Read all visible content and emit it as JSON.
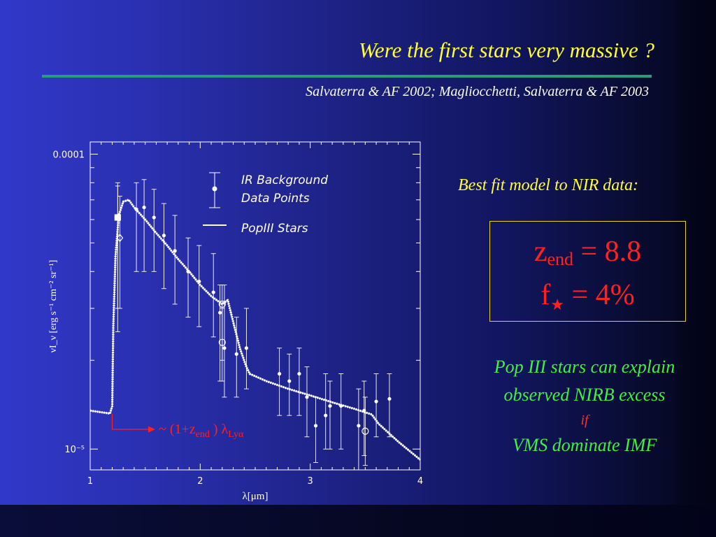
{
  "slide": {
    "title": "Were the first stars very massive ?",
    "references": "Salvaterra & AF 2002;  Magliocchetti, Salvaterra & AF 2003",
    "best_fit_label": "Best fit model to NIR data:",
    "fit": {
      "zend_symbol": "z",
      "zend_sub": "end",
      "zend_value": "= 8.8",
      "fstar_symbol": "f",
      "fstar_sub": "★",
      "fstar_value": "= 4%"
    },
    "notes": {
      "line1": "Pop III stars can explain",
      "line2": "observed NIRB excess",
      "line3": "if",
      "line4": "VMS dominate IMF"
    },
    "colors": {
      "title": "#ffff33",
      "rule": "#2d9a7c",
      "fit_text": "#ff2020",
      "fit_border": "#e8d020",
      "notes": "#44ee44",
      "if_text": "#ff3030",
      "plot_fg": "#ffffff"
    }
  },
  "chart_data": {
    "type": "scatter",
    "xlabel": "λ[μm]",
    "ylabel": "νI_ν  [erg s⁻¹ cm⁻² sr⁻¹]",
    "xlim": [
      1,
      4
    ],
    "ylog": true,
    "ylim": [
      8.5e-06,
      0.00011
    ],
    "x_ticks": [
      "1",
      "2",
      "3",
      "4"
    ],
    "y_ticks": [
      {
        "label": "0.0001",
        "value": 0.0001
      },
      {
        "label": "10⁻⁵",
        "value": 1e-05
      }
    ],
    "legend": [
      {
        "name": "IR Background Data Points",
        "marker": "point-errorbar"
      },
      {
        "name": "PopIII Stars",
        "marker": "line"
      }
    ],
    "annotation": {
      "text_prefix": "~ (1+z",
      "text_sub": "end",
      "text_mid": " ) λ",
      "text_sub2": "Lyα",
      "x_start": 1.2,
      "color": "#ff2020"
    },
    "series": [
      {
        "name": "IR Background Data Points",
        "points": [
          {
            "x": 1.25,
            "y": 6.1e-05,
            "lo": 3e-05,
            "hi": 8e-05,
            "marker": "filled-large"
          },
          {
            "x": 1.25,
            "y": 6.1e-05,
            "lo": 2.5e-05,
            "hi": 7.8e-05,
            "marker": "open-square"
          },
          {
            "x": 1.27,
            "y": 5.2e-05,
            "lo": 3e-05,
            "hi": 7.2e-05,
            "marker": "open-diamond"
          },
          {
            "x": 1.42,
            "y": 6.5e-05,
            "lo": 4e-05,
            "hi": 8e-05,
            "marker": "filled"
          },
          {
            "x": 1.49,
            "y": 6.6e-05,
            "lo": 4e-05,
            "hi": 8.2e-05,
            "marker": "filled"
          },
          {
            "x": 1.58,
            "y": 6.1e-05,
            "lo": 4e-05,
            "hi": 7.6e-05,
            "marker": "filled"
          },
          {
            "x": 1.67,
            "y": 5.3e-05,
            "lo": 3.5e-05,
            "hi": 6.8e-05,
            "marker": "filled"
          },
          {
            "x": 1.77,
            "y": 4.7e-05,
            "lo": 3.1e-05,
            "hi": 6.2e-05,
            "marker": "filled"
          },
          {
            "x": 1.89,
            "y": 4e-05,
            "lo": 2.8e-05,
            "hi": 5.2e-05,
            "marker": "filled"
          },
          {
            "x": 1.99,
            "y": 3.7e-05,
            "lo": 2.6e-05,
            "hi": 4.9e-05,
            "marker": "filled"
          },
          {
            "x": 2.12,
            "y": 3.4e-05,
            "lo": 2.4e-05,
            "hi": 4.6e-05,
            "marker": "filled"
          },
          {
            "x": 2.18,
            "y": 2.9e-05,
            "lo": 1.7e-05,
            "hi": 3.6e-05,
            "marker": "filled"
          },
          {
            "x": 2.2,
            "y": 3.1e-05,
            "lo": 2e-05,
            "hi": 3.6e-05,
            "marker": "open-circle"
          },
          {
            "x": 2.2,
            "y": 2.3e-05,
            "lo": 1.7e-05,
            "hi": 3e-05,
            "marker": "open-circle"
          },
          {
            "x": 2.22,
            "y": 2.2e-05,
            "lo": 1.5e-05,
            "hi": 3.6e-05,
            "marker": "filled"
          },
          {
            "x": 2.33,
            "y": 2.1e-05,
            "lo": 1.5e-05,
            "hi": 2.8e-05,
            "marker": "filled"
          },
          {
            "x": 2.42,
            "y": 2.2e-05,
            "lo": 1.6e-05,
            "hi": 3e-05,
            "marker": "filled"
          },
          {
            "x": 2.72,
            "y": 1.8e-05,
            "lo": 1.3e-05,
            "hi": 2.2e-05,
            "marker": "filled"
          },
          {
            "x": 2.81,
            "y": 1.7e-05,
            "lo": 1.3e-05,
            "hi": 2.1e-05,
            "marker": "filled"
          },
          {
            "x": 2.9,
            "y": 1.8e-05,
            "lo": 1.3e-05,
            "hi": 2.2e-05,
            "marker": "filled"
          },
          {
            "x": 2.97,
            "y": 1.5e-05,
            "lo": 1.1e-05,
            "hi": 1.9e-05,
            "marker": "filled"
          },
          {
            "x": 3.05,
            "y": 1.2e-05,
            "lo": 9e-06,
            "hi": 1.5e-05,
            "marker": "filled"
          },
          {
            "x": 3.14,
            "y": 1.3e-05,
            "lo": 1e-05,
            "hi": 1.8e-05,
            "marker": "filled"
          },
          {
            "x": 3.18,
            "y": 1.4e-05,
            "lo": 1e-05,
            "hi": 1.7e-05,
            "marker": "filled"
          },
          {
            "x": 3.28,
            "y": 1.4e-05,
            "lo": 1e-05,
            "hi": 1.8e-05,
            "marker": "filled"
          },
          {
            "x": 3.44,
            "y": 1.2e-05,
            "lo": 8.5e-06,
            "hi": 1.6e-05,
            "marker": "filled"
          },
          {
            "x": 3.49,
            "y": 1.35e-05,
            "lo": 9.5e-06,
            "hi": 1.7e-05,
            "marker": "filled"
          },
          {
            "x": 3.5,
            "y": 1.15e-05,
            "lo": 8.8e-06,
            "hi": 1.5e-05,
            "marker": "open-circle"
          },
          {
            "x": 3.6,
            "y": 1.45e-05,
            "lo": 1.1e-05,
            "hi": 1.8e-05,
            "marker": "filled"
          },
          {
            "x": 3.72,
            "y": 1.48e-05,
            "lo": 1.1e-05,
            "hi": 1.8e-05,
            "marker": "filled"
          }
        ]
      },
      {
        "name": "PopIII Stars",
        "line": [
          [
            1.0,
            1.35e-05
          ],
          [
            1.18,
            1.32e-05
          ],
          [
            1.2,
            1.4e-05
          ],
          [
            1.21,
            2.6e-05
          ],
          [
            1.23,
            4.5e-05
          ],
          [
            1.26,
            6.2e-05
          ],
          [
            1.3,
            6.9e-05
          ],
          [
            1.35,
            7e-05
          ],
          [
            1.4,
            6.6e-05
          ],
          [
            1.5,
            6e-05
          ],
          [
            1.6,
            5.4e-05
          ],
          [
            1.7,
            4.9e-05
          ],
          [
            1.8,
            4.4e-05
          ],
          [
            1.9,
            4e-05
          ],
          [
            2.0,
            3.6e-05
          ],
          [
            2.1,
            3.3e-05
          ],
          [
            2.2,
            3.1e-05
          ],
          [
            2.25,
            3.2e-05
          ],
          [
            2.3,
            2.7e-05
          ],
          [
            2.36,
            2.2e-05
          ],
          [
            2.42,
            1.9e-05
          ],
          [
            2.45,
            1.8e-05
          ],
          [
            2.6,
            1.7e-05
          ],
          [
            2.8,
            1.6e-05
          ],
          [
            3.0,
            1.52e-05
          ],
          [
            3.2,
            1.44e-05
          ],
          [
            3.4,
            1.37e-05
          ],
          [
            3.56,
            1.31e-05
          ],
          [
            3.62,
            1.22e-05
          ],
          [
            3.8,
            1.06e-05
          ],
          [
            4.0,
            9.2e-06
          ]
        ]
      }
    ]
  }
}
